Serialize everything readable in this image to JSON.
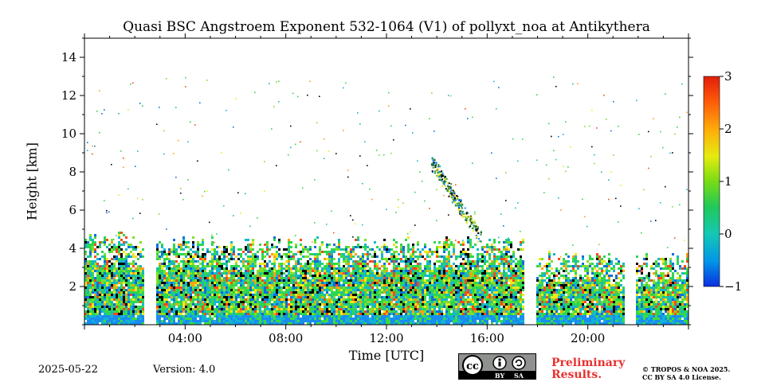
{
  "chart_data": {
    "type": "heatmap",
    "title": "Quasi BSC Angstroem Exponent 532-1064 (V1) of pollyxt_noa at Antikythera",
    "xlabel": "Time [UTC]",
    "ylabel": "Height [km]",
    "x_range_hours": [
      0,
      24
    ],
    "ylim": [
      0,
      15
    ],
    "x_ticks": [
      {
        "h": 4,
        "label": "04:00"
      },
      {
        "h": 8,
        "label": "08:00"
      },
      {
        "h": 12,
        "label": "12:00"
      },
      {
        "h": 16,
        "label": "16:00"
      },
      {
        "h": 20,
        "label": "20:00"
      }
    ],
    "y_ticks": [
      {
        "v": 2,
        "label": "2"
      },
      {
        "v": 4,
        "label": "4"
      },
      {
        "v": 6,
        "label": "6"
      },
      {
        "v": 8,
        "label": "8"
      },
      {
        "v": 10,
        "label": "10"
      },
      {
        "v": 12,
        "label": "12"
      },
      {
        "v": 14,
        "label": "14"
      }
    ],
    "colorbar": {
      "min": -1,
      "max": 3,
      "ticks": [
        {
          "v": 3,
          "label": "3"
        },
        {
          "v": 2,
          "label": "2"
        },
        {
          "v": 1,
          "label": "1"
        },
        {
          "v": 0,
          "label": "0"
        },
        {
          "v": -1,
          "label": "−1"
        }
      ]
    },
    "data_gaps_hours": [
      [
        2.35,
        2.85
      ],
      [
        17.45,
        17.95
      ],
      [
        21.4,
        21.9
      ]
    ],
    "segments": [
      {
        "start_h": 0.0,
        "end_h": 2.35,
        "top_km": 4.4
      },
      {
        "start_h": 2.85,
        "end_h": 17.45,
        "top_km": 4.2
      },
      {
        "start_h": 17.95,
        "end_h": 21.4,
        "top_km": 3.4
      },
      {
        "start_h": 21.9,
        "end_h": 24.0,
        "top_km": 3.4
      }
    ],
    "cirrus_feature": {
      "start_h": 13.8,
      "end_h": 15.7,
      "top_km": 8.5,
      "bottom_km": 4.6
    }
  },
  "footer": {
    "date": "2025-05-22",
    "version": "Version: 4.0",
    "preliminary": "Preliminary\nResults.",
    "copyright": "© TROPOS & NOA 2025.\nCC BY SA 4.0 License.",
    "license_badge": {
      "cc": "cc",
      "by": "BY",
      "sa": "SA"
    }
  }
}
